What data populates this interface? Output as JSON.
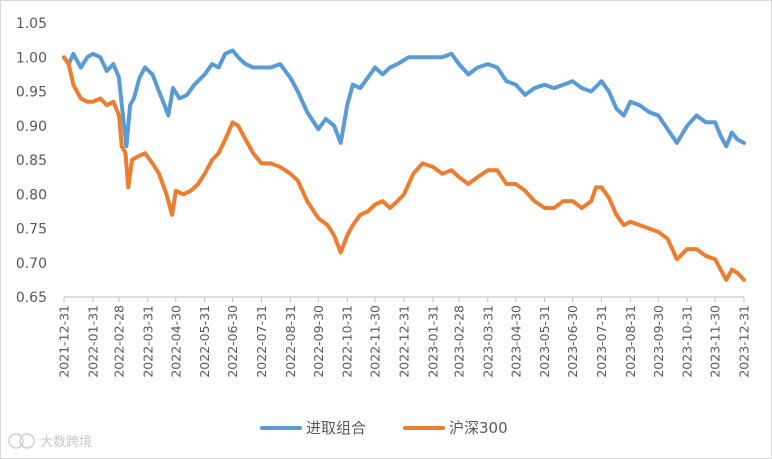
{
  "watermark": {
    "text": "大数跨境",
    "icon": "brand-logo-icon"
  },
  "chart_data": {
    "type": "line",
    "title": "",
    "xlabel": "",
    "ylabel": "",
    "ylim": [
      0.65,
      1.05
    ],
    "yticks": [
      "1.05",
      "1.00",
      "0.95",
      "0.90",
      "0.85",
      "0.80",
      "0.75",
      "0.70",
      "0.65"
    ],
    "grid": false,
    "legend_position": "bottom",
    "x_start": "2021-12-31",
    "x_end": "2023-12-31",
    "x": [
      "2021-12-31",
      "2022-01-31",
      "2022-02-28",
      "2022-03-31",
      "2022-04-30",
      "2022-05-31",
      "2022-06-30",
      "2022-07-31",
      "2022-08-31",
      "2022-09-30",
      "2022-10-31",
      "2022-11-30",
      "2022-12-31",
      "2023-01-31",
      "2023-02-28",
      "2023-03-31",
      "2023-04-30",
      "2023-05-31",
      "2023-06-30",
      "2023-07-31",
      "2023-08-31",
      "2023-09-30",
      "2023-10-31",
      "2023-11-30",
      "2023-12-31"
    ],
    "series": [
      {
        "name": "进取组合",
        "color": "#5B9BD5",
        "points": [
          [
            "2021-12-31",
            1.0
          ],
          [
            "2022-01-05",
            0.99
          ],
          [
            "2022-01-10",
            1.005
          ],
          [
            "2022-01-18",
            0.985
          ],
          [
            "2022-01-25",
            1.0
          ],
          [
            "2022-01-31",
            1.005
          ],
          [
            "2022-02-08",
            1.0
          ],
          [
            "2022-02-15",
            0.98
          ],
          [
            "2022-02-22",
            0.99
          ],
          [
            "2022-02-28",
            0.97
          ],
          [
            "2022-03-03",
            0.93
          ],
          [
            "2022-03-08",
            0.87
          ],
          [
            "2022-03-12",
            0.93
          ],
          [
            "2022-03-16",
            0.94
          ],
          [
            "2022-03-22",
            0.97
          ],
          [
            "2022-03-28",
            0.985
          ],
          [
            "2022-04-05",
            0.975
          ],
          [
            "2022-04-12",
            0.95
          ],
          [
            "2022-04-18",
            0.93
          ],
          [
            "2022-04-22",
            0.915
          ],
          [
            "2022-04-27",
            0.955
          ],
          [
            "2022-05-04",
            0.94
          ],
          [
            "2022-05-12",
            0.945
          ],
          [
            "2022-05-20",
            0.96
          ],
          [
            "2022-05-31",
            0.975
          ],
          [
            "2022-06-08",
            0.99
          ],
          [
            "2022-06-15",
            0.985
          ],
          [
            "2022-06-22",
            1.005
          ],
          [
            "2022-06-30",
            1.01
          ],
          [
            "2022-07-06",
            1.0
          ],
          [
            "2022-07-14",
            0.99
          ],
          [
            "2022-07-22",
            0.985
          ],
          [
            "2022-07-31",
            0.985
          ],
          [
            "2022-08-10",
            0.985
          ],
          [
            "2022-08-20",
            0.99
          ],
          [
            "2022-08-31",
            0.97
          ],
          [
            "2022-09-08",
            0.95
          ],
          [
            "2022-09-18",
            0.92
          ],
          [
            "2022-09-30",
            0.895
          ],
          [
            "2022-10-08",
            0.91
          ],
          [
            "2022-10-17",
            0.9
          ],
          [
            "2022-10-24",
            0.875
          ],
          [
            "2022-10-31",
            0.93
          ],
          [
            "2022-11-06",
            0.96
          ],
          [
            "2022-11-14",
            0.955
          ],
          [
            "2022-11-22",
            0.97
          ],
          [
            "2022-11-30",
            0.985
          ],
          [
            "2022-12-08",
            0.975
          ],
          [
            "2022-12-16",
            0.985
          ],
          [
            "2022-12-24",
            0.99
          ],
          [
            "2023-01-05",
            1.0
          ],
          [
            "2023-01-15",
            1.0
          ],
          [
            "2023-01-31",
            1.0
          ],
          [
            "2023-02-10",
            1.0
          ],
          [
            "2023-02-20",
            1.005
          ],
          [
            "2023-02-28",
            0.99
          ],
          [
            "2023-03-10",
            0.975
          ],
          [
            "2023-03-20",
            0.985
          ],
          [
            "2023-03-31",
            0.99
          ],
          [
            "2023-04-10",
            0.985
          ],
          [
            "2023-04-20",
            0.965
          ],
          [
            "2023-04-30",
            0.96
          ],
          [
            "2023-05-10",
            0.945
          ],
          [
            "2023-05-20",
            0.955
          ],
          [
            "2023-05-31",
            0.96
          ],
          [
            "2023-06-10",
            0.955
          ],
          [
            "2023-06-20",
            0.96
          ],
          [
            "2023-06-30",
            0.965
          ],
          [
            "2023-07-10",
            0.955
          ],
          [
            "2023-07-20",
            0.95
          ],
          [
            "2023-07-31",
            0.965
          ],
          [
            "2023-08-08",
            0.95
          ],
          [
            "2023-08-16",
            0.925
          ],
          [
            "2023-08-24",
            0.915
          ],
          [
            "2023-08-31",
            0.935
          ],
          [
            "2023-09-10",
            0.93
          ],
          [
            "2023-09-20",
            0.92
          ],
          [
            "2023-09-30",
            0.915
          ],
          [
            "2023-10-10",
            0.895
          ],
          [
            "2023-10-20",
            0.875
          ],
          [
            "2023-10-31",
            0.9
          ],
          [
            "2023-11-10",
            0.915
          ],
          [
            "2023-11-20",
            0.905
          ],
          [
            "2023-11-30",
            0.905
          ],
          [
            "2023-12-06",
            0.885
          ],
          [
            "2023-12-12",
            0.87
          ],
          [
            "2023-12-18",
            0.89
          ],
          [
            "2023-12-24",
            0.88
          ],
          [
            "2023-12-31",
            0.875
          ]
        ]
      },
      {
        "name": "沪深300",
        "color": "#ED7D31",
        "points": [
          [
            "2021-12-31",
            1.0
          ],
          [
            "2022-01-05",
            0.99
          ],
          [
            "2022-01-10",
            0.96
          ],
          [
            "2022-01-18",
            0.94
          ],
          [
            "2022-01-25",
            0.935
          ],
          [
            "2022-01-31",
            0.935
          ],
          [
            "2022-02-08",
            0.94
          ],
          [
            "2022-02-15",
            0.93
          ],
          [
            "2022-02-22",
            0.935
          ],
          [
            "2022-02-28",
            0.915
          ],
          [
            "2022-03-03",
            0.87
          ],
          [
            "2022-03-07",
            0.86
          ],
          [
            "2022-03-10",
            0.81
          ],
          [
            "2022-03-14",
            0.85
          ],
          [
            "2022-03-20",
            0.855
          ],
          [
            "2022-03-28",
            0.86
          ],
          [
            "2022-04-05",
            0.845
          ],
          [
            "2022-04-12",
            0.83
          ],
          [
            "2022-04-20",
            0.8
          ],
          [
            "2022-04-26",
            0.77
          ],
          [
            "2022-04-30",
            0.805
          ],
          [
            "2022-05-08",
            0.8
          ],
          [
            "2022-05-16",
            0.805
          ],
          [
            "2022-05-24",
            0.815
          ],
          [
            "2022-05-31",
            0.83
          ],
          [
            "2022-06-08",
            0.85
          ],
          [
            "2022-06-15",
            0.86
          ],
          [
            "2022-06-22",
            0.88
          ],
          [
            "2022-06-30",
            0.905
          ],
          [
            "2022-07-06",
            0.9
          ],
          [
            "2022-07-14",
            0.88
          ],
          [
            "2022-07-22",
            0.86
          ],
          [
            "2022-07-31",
            0.845
          ],
          [
            "2022-08-10",
            0.845
          ],
          [
            "2022-08-20",
            0.84
          ],
          [
            "2022-08-31",
            0.83
          ],
          [
            "2022-09-08",
            0.82
          ],
          [
            "2022-09-18",
            0.79
          ],
          [
            "2022-09-30",
            0.765
          ],
          [
            "2022-10-10",
            0.755
          ],
          [
            "2022-10-17",
            0.74
          ],
          [
            "2022-10-24",
            0.715
          ],
          [
            "2022-10-31",
            0.74
          ],
          [
            "2022-11-06",
            0.755
          ],
          [
            "2022-11-14",
            0.77
          ],
          [
            "2022-11-22",
            0.775
          ],
          [
            "2022-11-30",
            0.785
          ],
          [
            "2022-12-08",
            0.79
          ],
          [
            "2022-12-16",
            0.78
          ],
          [
            "2022-12-24",
            0.79
          ],
          [
            "2022-12-31",
            0.8
          ],
          [
            "2023-01-10",
            0.83
          ],
          [
            "2023-01-20",
            0.845
          ],
          [
            "2023-01-31",
            0.84
          ],
          [
            "2023-02-10",
            0.83
          ],
          [
            "2023-02-20",
            0.835
          ],
          [
            "2023-02-28",
            0.825
          ],
          [
            "2023-03-10",
            0.815
          ],
          [
            "2023-03-20",
            0.825
          ],
          [
            "2023-03-31",
            0.835
          ],
          [
            "2023-04-10",
            0.835
          ],
          [
            "2023-04-20",
            0.815
          ],
          [
            "2023-04-30",
            0.815
          ],
          [
            "2023-05-10",
            0.805
          ],
          [
            "2023-05-20",
            0.79
          ],
          [
            "2023-05-31",
            0.78
          ],
          [
            "2023-06-10",
            0.78
          ],
          [
            "2023-06-20",
            0.79
          ],
          [
            "2023-06-30",
            0.79
          ],
          [
            "2023-07-10",
            0.78
          ],
          [
            "2023-07-20",
            0.79
          ],
          [
            "2023-07-25",
            0.81
          ],
          [
            "2023-07-31",
            0.81
          ],
          [
            "2023-08-08",
            0.795
          ],
          [
            "2023-08-16",
            0.77
          ],
          [
            "2023-08-24",
            0.755
          ],
          [
            "2023-08-31",
            0.76
          ],
          [
            "2023-09-10",
            0.755
          ],
          [
            "2023-09-20",
            0.75
          ],
          [
            "2023-09-30",
            0.745
          ],
          [
            "2023-10-10",
            0.735
          ],
          [
            "2023-10-20",
            0.705
          ],
          [
            "2023-10-31",
            0.72
          ],
          [
            "2023-11-10",
            0.72
          ],
          [
            "2023-11-20",
            0.71
          ],
          [
            "2023-11-30",
            0.705
          ],
          [
            "2023-12-06",
            0.69
          ],
          [
            "2023-12-12",
            0.675
          ],
          [
            "2023-12-18",
            0.69
          ],
          [
            "2023-12-24",
            0.685
          ],
          [
            "2023-12-31",
            0.675
          ]
        ]
      }
    ]
  }
}
